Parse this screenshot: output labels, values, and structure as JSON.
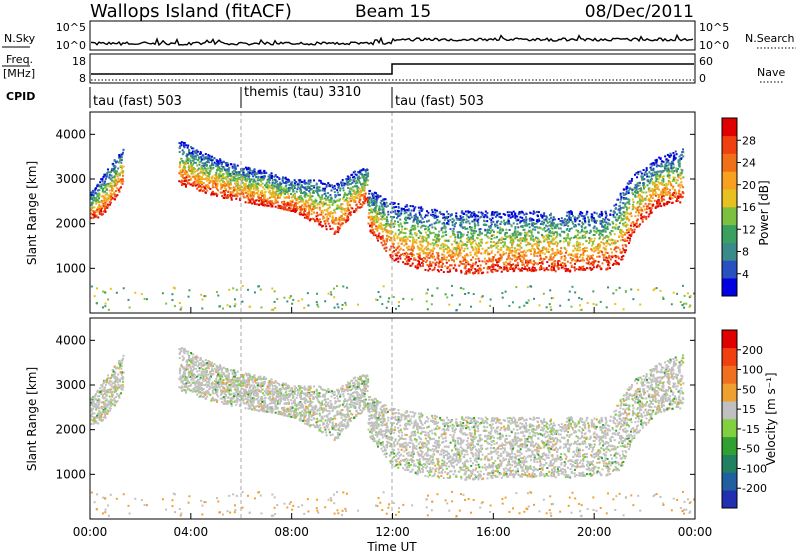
{
  "header": {
    "title": "Wallops Island (fitACF)",
    "beam": "Beam 15",
    "date": "08/Dec/2011"
  },
  "strip_panels": {
    "nsky_label": "N.Sky",
    "nsky_ticks": [
      "10^5",
      "10^0"
    ],
    "nsearch_label": "N.Search",
    "nsearch_ticks": [
      "10^5",
      "10^0"
    ],
    "freq_label_1": "Freq.",
    "freq_label_2": "[MHz]",
    "freq_ticks": [
      "18",
      "8"
    ],
    "nave_label": "Nave",
    "nave_ticks": [
      "60",
      "0"
    ],
    "cpid_label": "CPID"
  },
  "cpid_modes": [
    {
      "label": "tau (fast) 503",
      "start_hour": 0,
      "end_hour": 6
    },
    {
      "label": "themis (tau) 3310",
      "start_hour": 6,
      "end_hour": 12
    },
    {
      "label": "tau (fast) 503",
      "start_hour": 12,
      "end_hour": 24
    }
  ],
  "colorbars": {
    "power": {
      "label": "Power [dB]",
      "ticks": [
        "28",
        "24",
        "20",
        "16",
        "12",
        "8",
        "4"
      ],
      "colors": [
        "#0000e0",
        "#2850c0",
        "#3a8a8a",
        "#3aa060",
        "#7cc040",
        "#e8c020",
        "#f8a020",
        "#f07018",
        "#f04010",
        "#e00000"
      ]
    },
    "velocity": {
      "label": "Velocity [m s⁻¹]",
      "ticks": [
        "200",
        "100",
        "50",
        "15",
        "-15",
        "-50",
        "-100",
        "-200"
      ],
      "colors": [
        "#2030b0",
        "#2060a0",
        "#208060",
        "#30a030",
        "#80d040",
        "#c0c0c0",
        "#f0a030",
        "#f07020",
        "#f04010",
        "#e00000"
      ]
    }
  },
  "chart_data": [
    {
      "type": "heatmap",
      "name": "Power",
      "xlabel": "",
      "ylabel": "Slant Range [km]",
      "xlim": [
        0,
        24
      ],
      "ylim": [
        0,
        4500
      ],
      "yticks": [
        1000,
        2000,
        3000,
        4000
      ],
      "echo_bands": [
        {
          "x": [
            0.0,
            0.5,
            1.0,
            1.3
          ],
          "range_low": [
            2100,
            2200,
            2600,
            2900
          ],
          "range_high": [
            2700,
            3100,
            3500,
            3700
          ]
        },
        {
          "x": [
            3.5,
            4.5,
            6.0,
            7.0,
            8.0,
            9.0,
            9.7,
            10.5,
            11.0
          ],
          "range_low": [
            2900,
            2700,
            2500,
            2400,
            2300,
            2000,
            1750,
            2300,
            2500
          ],
          "range_high": [
            3900,
            3600,
            3300,
            3200,
            3000,
            3000,
            2900,
            3200,
            3300
          ]
        },
        {
          "x": [
            11.0,
            12.0,
            13.0,
            14.0,
            15.0,
            17.0,
            19.0,
            20.5,
            21.0,
            21.5,
            22.5,
            23.5
          ],
          "range_low": [
            1900,
            1200,
            1000,
            900,
            900,
            950,
            950,
            1000,
            1100,
            1800,
            2400,
            2500
          ],
          "range_high": [
            2800,
            2500,
            2400,
            2300,
            2300,
            2300,
            2300,
            2300,
            2700,
            3100,
            3500,
            3700
          ]
        }
      ]
    },
    {
      "type": "heatmap",
      "name": "Velocity",
      "xlabel": "Time UT",
      "ylabel": "Slant Range [km]",
      "xlim": [
        0,
        24
      ],
      "ylim": [
        0,
        4500
      ],
      "xticks": [
        "00:00",
        "04:00",
        "08:00",
        "12:00",
        "16:00",
        "20:00",
        "00:00"
      ],
      "yticks": [
        1000,
        2000,
        3000,
        4000
      ],
      "echo_bands": [
        {
          "x": [
            0.0,
            0.5,
            1.0,
            1.3
          ],
          "range_low": [
            2100,
            2200,
            2600,
            2900
          ],
          "range_high": [
            2700,
            3100,
            3500,
            3700
          ]
        },
        {
          "x": [
            3.5,
            4.5,
            6.0,
            7.0,
            8.0,
            9.0,
            9.7,
            10.5,
            11.0
          ],
          "range_low": [
            2900,
            2700,
            2500,
            2400,
            2300,
            2000,
            1750,
            2300,
            2500
          ],
          "range_high": [
            3900,
            3600,
            3300,
            3200,
            3000,
            3000,
            2900,
            3200,
            3300
          ]
        },
        {
          "x": [
            11.0,
            12.0,
            13.0,
            14.0,
            15.0,
            17.0,
            19.0,
            20.5,
            21.0,
            21.5,
            22.5,
            23.5
          ],
          "range_low": [
            1900,
            1200,
            1000,
            900,
            900,
            950,
            950,
            1000,
            1100,
            1800,
            2400,
            2500
          ],
          "range_high": [
            2800,
            2500,
            2400,
            2300,
            2300,
            2300,
            2300,
            2300,
            2700,
            3100,
            3500,
            3700
          ]
        }
      ]
    }
  ]
}
